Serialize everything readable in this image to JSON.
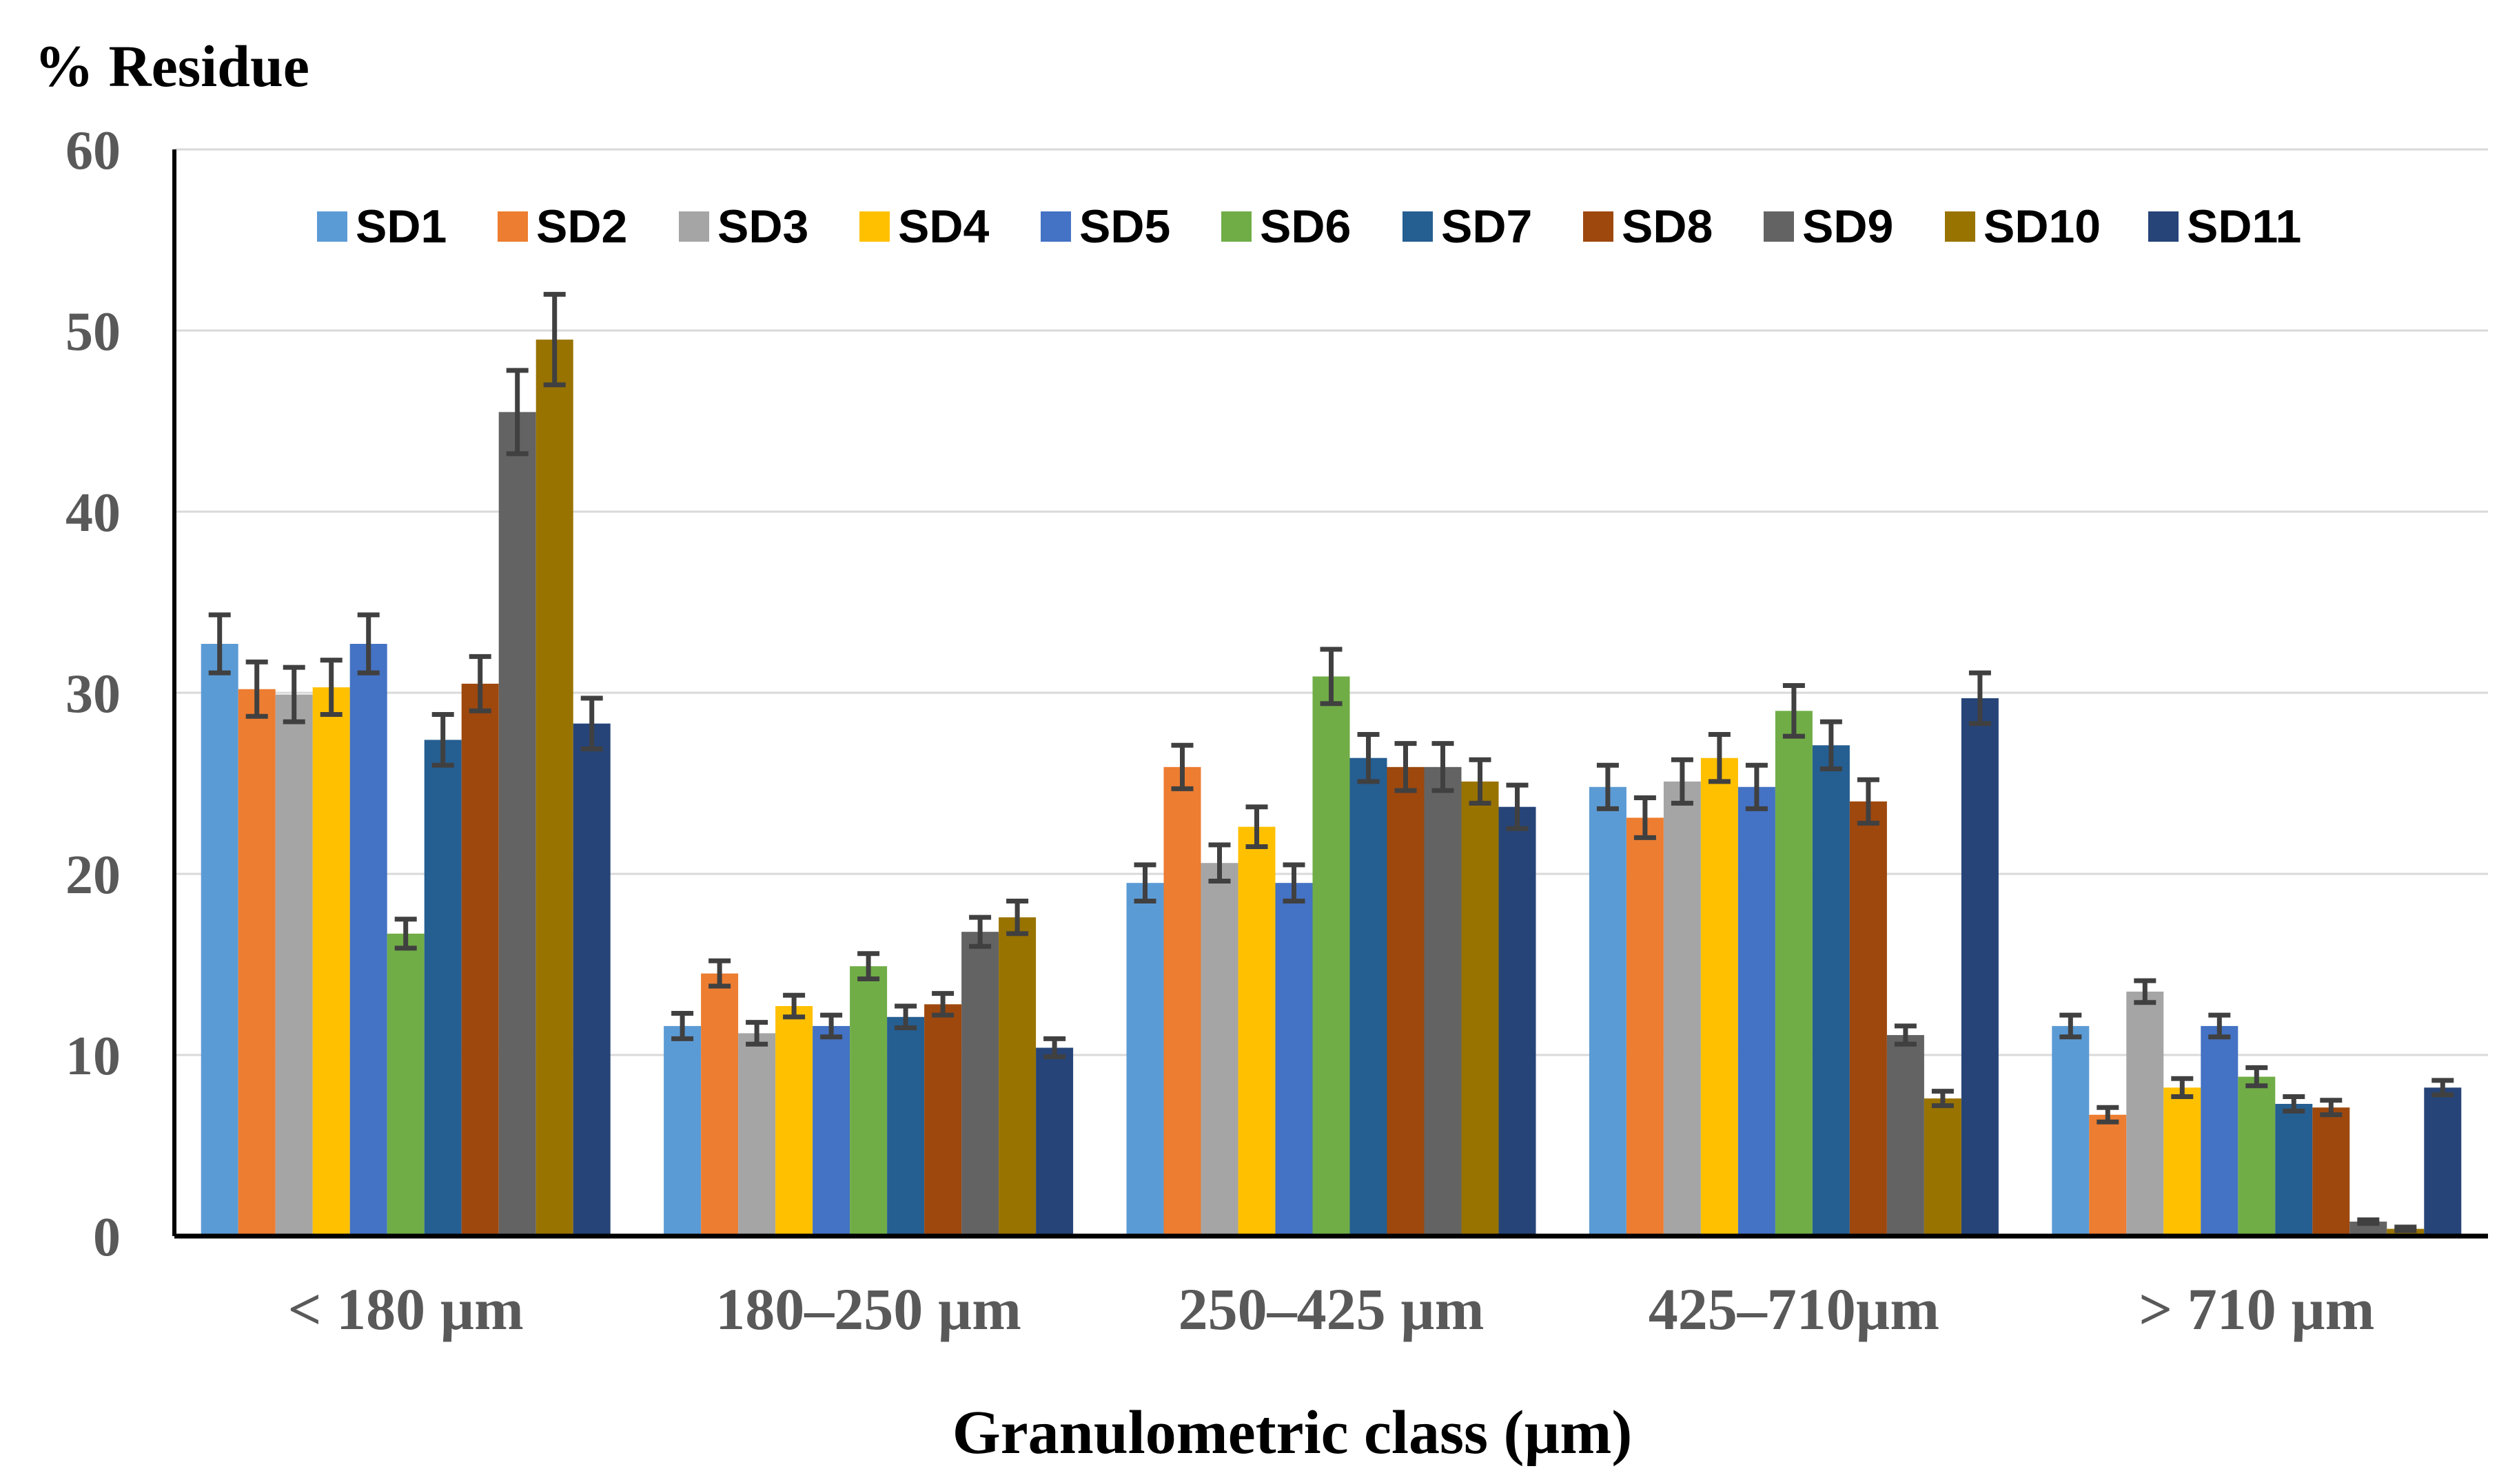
{
  "chart_data": {
    "type": "bar",
    "ylabel": "% Residue",
    "xlabel": "Granulometric class (µm)",
    "ylim": [
      0,
      60
    ],
    "yticks": [
      0,
      10,
      20,
      30,
      40,
      50,
      60
    ],
    "grid": true,
    "legend_position": "top",
    "categories": [
      "< 180 µm",
      "180–250 µm",
      "250–425 µm",
      "425–710µm",
      "> 710 µm"
    ],
    "series": [
      {
        "name": "SD1",
        "color": "#5B9BD5",
        "values": [
          32.7,
          11.6,
          19.5,
          24.8,
          11.6
        ],
        "errors": [
          1.6,
          0.7,
          1.0,
          1.2,
          0.6
        ]
      },
      {
        "name": "SD2",
        "color": "#ED7D31",
        "values": [
          30.2,
          14.5,
          25.9,
          23.1,
          6.7
        ],
        "errors": [
          1.5,
          0.7,
          1.2,
          1.1,
          0.4
        ]
      },
      {
        "name": "SD3",
        "color": "#A5A5A5",
        "values": [
          29.9,
          11.2,
          20.6,
          25.1,
          13.5
        ],
        "errors": [
          1.5,
          0.6,
          1.0,
          1.2,
          0.6
        ]
      },
      {
        "name": "SD4",
        "color": "#FFC000",
        "values": [
          30.3,
          12.7,
          22.6,
          26.4,
          8.2
        ],
        "errors": [
          1.5,
          0.6,
          1.1,
          1.3,
          0.5
        ]
      },
      {
        "name": "SD5",
        "color": "#4472C4",
        "values": [
          32.7,
          11.6,
          19.5,
          24.8,
          11.6
        ],
        "errors": [
          1.6,
          0.6,
          1.0,
          1.2,
          0.6
        ]
      },
      {
        "name": "SD6",
        "color": "#70AD47",
        "values": [
          16.7,
          14.9,
          30.9,
          29.0,
          8.8
        ],
        "errors": [
          0.8,
          0.7,
          1.5,
          1.4,
          0.5
        ]
      },
      {
        "name": "SD7",
        "color": "#255E91",
        "values": [
          27.4,
          12.1,
          26.4,
          27.1,
          7.3
        ],
        "errors": [
          1.4,
          0.6,
          1.3,
          1.3,
          0.4
        ]
      },
      {
        "name": "SD8",
        "color": "#9E480E",
        "values": [
          30.5,
          12.8,
          25.9,
          24.0,
          7.1
        ],
        "errors": [
          1.5,
          0.6,
          1.3,
          1.2,
          0.4
        ]
      },
      {
        "name": "SD9",
        "color": "#636363",
        "values": [
          45.5,
          16.8,
          25.9,
          11.1,
          0.8
        ],
        "errors": [
          2.3,
          0.8,
          1.3,
          0.5,
          0.1
        ]
      },
      {
        "name": "SD10",
        "color": "#997300",
        "values": [
          49.5,
          17.6,
          25.1,
          7.6,
          0.4
        ],
        "errors": [
          2.5,
          0.9,
          1.2,
          0.4,
          0.1
        ]
      },
      {
        "name": "SD11",
        "color": "#264478",
        "values": [
          28.3,
          10.4,
          23.7,
          29.7,
          8.2
        ],
        "errors": [
          1.4,
          0.5,
          1.2,
          1.4,
          0.4
        ]
      }
    ]
  }
}
